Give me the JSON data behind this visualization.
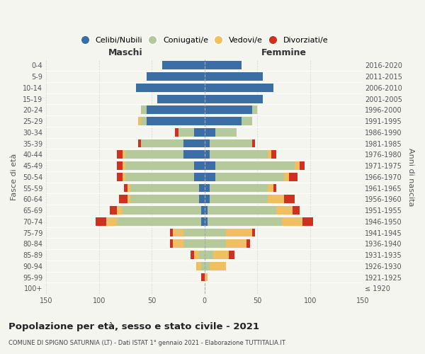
{
  "age_groups": [
    "100+",
    "95-99",
    "90-94",
    "85-89",
    "80-84",
    "75-79",
    "70-74",
    "65-69",
    "60-64",
    "55-59",
    "50-54",
    "45-49",
    "40-44",
    "35-39",
    "30-34",
    "25-29",
    "20-24",
    "15-19",
    "10-14",
    "5-9",
    "0-4"
  ],
  "birth_years": [
    "≤ 1920",
    "1921-1925",
    "1926-1930",
    "1931-1935",
    "1936-1940",
    "1941-1945",
    "1946-1950",
    "1951-1955",
    "1956-1960",
    "1961-1965",
    "1966-1970",
    "1971-1975",
    "1976-1980",
    "1981-1985",
    "1986-1990",
    "1991-1995",
    "1996-2000",
    "2001-2005",
    "2006-2010",
    "2011-2015",
    "2016-2020"
  ],
  "maschi": {
    "celibi": [
      0,
      0,
      0,
      0,
      0,
      0,
      3,
      3,
      5,
      5,
      10,
      10,
      20,
      20,
      10,
      55,
      55,
      45,
      65,
      55,
      40
    ],
    "coniugati": [
      0,
      0,
      3,
      5,
      20,
      20,
      80,
      75,
      65,
      65,
      65,
      65,
      55,
      40,
      15,
      5,
      5,
      0,
      0,
      0,
      0
    ],
    "vedovi": [
      0,
      0,
      5,
      5,
      10,
      10,
      10,
      5,
      3,
      3,
      3,
      3,
      3,
      0,
      0,
      3,
      0,
      0,
      0,
      0,
      0
    ],
    "divorziati": [
      0,
      3,
      0,
      3,
      3,
      3,
      10,
      7,
      8,
      3,
      5,
      5,
      5,
      3,
      3,
      0,
      0,
      0,
      0,
      0,
      0
    ]
  },
  "femmine": {
    "nubili": [
      0,
      0,
      0,
      0,
      0,
      0,
      3,
      3,
      5,
      5,
      10,
      10,
      5,
      5,
      10,
      35,
      45,
      55,
      65,
      55,
      35
    ],
    "coniugate": [
      0,
      0,
      5,
      8,
      20,
      20,
      70,
      65,
      55,
      55,
      65,
      75,
      55,
      40,
      20,
      10,
      5,
      0,
      0,
      0,
      0
    ],
    "vedove": [
      0,
      3,
      15,
      15,
      20,
      25,
      20,
      15,
      15,
      5,
      5,
      5,
      3,
      0,
      0,
      0,
      0,
      0,
      0,
      0,
      0
    ],
    "divorziate": [
      0,
      0,
      0,
      5,
      3,
      3,
      10,
      7,
      10,
      3,
      8,
      5,
      5,
      3,
      0,
      0,
      0,
      0,
      0,
      0,
      0
    ]
  },
  "colors": {
    "celibi": "#3b6ea5",
    "coniugati": "#b5c99a",
    "vedovi": "#f0c060",
    "divorziati": "#d03020"
  },
  "title": "Popolazione per età, sesso e stato civile - 2021",
  "subtitle": "COMUNE DI SPIGNO SATURNIA (LT) - Dati ISTAT 1° gennaio 2021 - Elaborazione TUTTITALIA.IT",
  "xlabel_left": "Maschi",
  "xlabel_right": "Femmine",
  "ylabel_left": "Fasce di età",
  "ylabel_right": "Anni di nascita",
  "xlim": 150,
  "legend_labels": [
    "Celibi/Nubili",
    "Coniugati/e",
    "Vedovi/e",
    "Divorziati/e"
  ],
  "bg_color": "#f5f5f0"
}
